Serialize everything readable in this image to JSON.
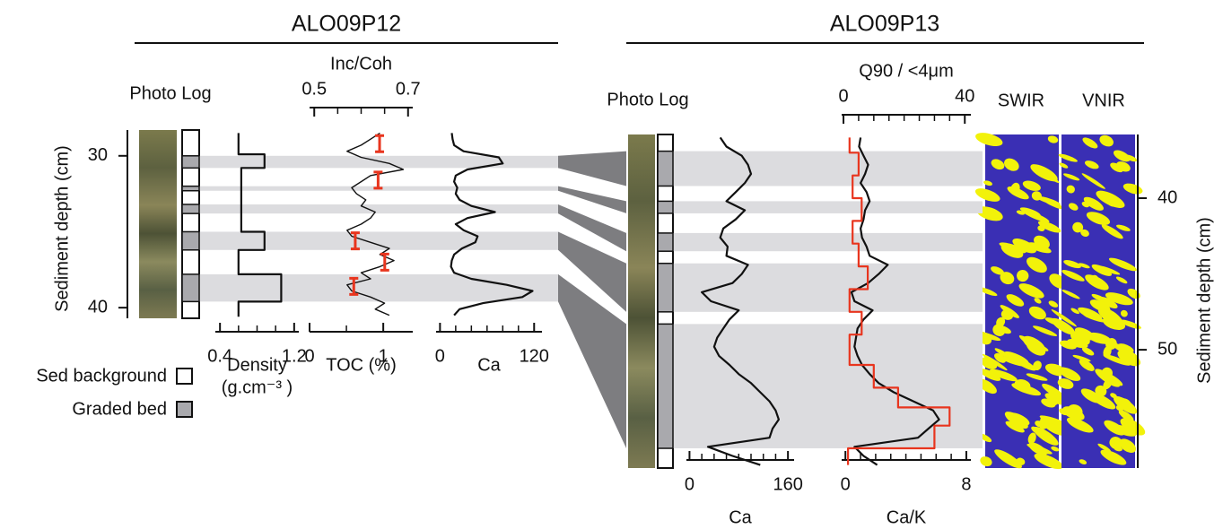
{
  "chart_data": [
    {
      "type": "line",
      "title": "ALO09P12",
      "photo_label": "Photo Log",
      "ylabel": "Sediment depth (cm)",
      "ylim": [
        28.3,
        40.7
      ],
      "yticks": [
        30,
        40
      ],
      "graded_beds": [
        [
          30.0,
          30.8
        ],
        [
          32.0,
          32.3
        ],
        [
          33.2,
          33.8
        ],
        [
          35.0,
          36.2
        ],
        [
          37.8,
          39.6
        ]
      ],
      "panels": [
        {
          "xlabel": "Density",
          "xunit": "(g.cm⁻³ )",
          "xlim": [
            0.35,
            1.25
          ],
          "xticks": [
            0.4,
            1.2
          ],
          "xminor": [
            0.6,
            0.8,
            1.0
          ],
          "series": [
            {
              "color": "#111111",
              "style": "step",
              "axis": "bottom",
              "depth": [
                28.5,
                29.9,
                29.9,
                30.8,
                30.8,
                35.0,
                35.0,
                36.2,
                36.2,
                37.8,
                37.8,
                39.6,
                39.6,
                40.6
              ],
              "values": [
                0.6,
                0.6,
                0.88,
                0.88,
                0.63,
                0.63,
                0.88,
                0.88,
                0.6,
                0.6,
                1.06,
                1.06,
                0.6,
                0.6
              ]
            }
          ]
        },
        {
          "xlabel": "TOC (%)",
          "xlabel_color": "#e8351e",
          "xlim": [
            0,
            1.4
          ],
          "xticks": [
            0,
            1
          ],
          "xminor": [
            0.5
          ],
          "x2label": "Inc/Coh",
          "x2lim": [
            0.49,
            0.71
          ],
          "x2ticks": [
            0.5,
            0.7
          ],
          "x2minor": [
            0.55,
            0.6,
            0.65
          ],
          "series": [
            {
              "color": "#111111",
              "style": "line",
              "axis": "top",
              "depth": [
                28.5,
                28.9,
                29.3,
                29.7,
                30.1,
                30.5,
                30.9,
                31.3,
                31.7,
                32.1,
                32.5,
                32.9,
                33.3,
                33.7,
                34.1,
                34.5,
                34.9,
                35.3,
                35.7,
                36.1,
                36.5,
                36.9,
                37.3,
                37.7,
                38.1,
                38.5,
                38.9,
                39.3,
                39.7,
                40.1,
                40.5
              ],
              "values": [
                0.64,
                0.62,
                0.6,
                0.57,
                0.6,
                0.66,
                0.69,
                0.62,
                0.6,
                0.58,
                0.59,
                0.61,
                0.6,
                0.63,
                0.62,
                0.6,
                0.57,
                0.58,
                0.62,
                0.66,
                0.64,
                0.67,
                0.64,
                0.6,
                0.62,
                0.57,
                0.58,
                0.62,
                0.65,
                0.63,
                0.66
              ]
            },
            {
              "color": "#e8351e",
              "style": "points",
              "axis": "bottom",
              "depth": [
                29.2,
                31.6,
                35.6,
                37.0,
                38.6
              ],
              "values": [
                0.95,
                0.93,
                0.62,
                1.02,
                0.6
              ]
            }
          ]
        },
        {
          "xlabel": "Ca",
          "xlim": [
            -5,
            130
          ],
          "xticks": [
            0,
            120
          ],
          "xminor": [
            20,
            40,
            60,
            80,
            100
          ],
          "series": [
            {
              "color": "#111111",
              "style": "line",
              "axis": "bottom",
              "depth": [
                28.5,
                28.9,
                29.3,
                29.7,
                30.1,
                30.5,
                30.9,
                31.3,
                31.7,
                32.1,
                32.5,
                32.9,
                33.3,
                33.7,
                34.1,
                34.5,
                34.9,
                35.3,
                35.7,
                36.1,
                36.5,
                36.9,
                37.3,
                37.7,
                38.1,
                38.5,
                38.9,
                39.3,
                39.7,
                40.1,
                40.5
              ],
              "values": [
                15,
                16,
                18,
                30,
                75,
                80,
                35,
                20,
                18,
                22,
                20,
                25,
                40,
                70,
                35,
                20,
                30,
                48,
                45,
                28,
                18,
                15,
                14,
                18,
                40,
                85,
                118,
                105,
                55,
                25,
                18
              ]
            }
          ]
        }
      ]
    },
    {
      "type": "line",
      "title": "ALO09P13",
      "photo_label": "Photo Log",
      "ylabel": "Sediment depth (cm)",
      "ylim": [
        35.8,
        57.8
      ],
      "yticks": [
        40,
        50
      ],
      "image_labels": [
        "SWIR",
        "VNIR"
      ],
      "graded_beds": [
        [
          36.9,
          39.2
        ],
        [
          40.2,
          41.0
        ],
        [
          42.3,
          43.5
        ],
        [
          44.3,
          47.5
        ],
        [
          48.3,
          56.5
        ]
      ],
      "panels": [
        {
          "xlabel": "Ca",
          "xlim": [
            -5,
            170
          ],
          "xticks": [
            0,
            160
          ],
          "xminor": [
            20,
            40,
            60,
            80,
            100,
            120,
            140
          ],
          "series": [
            {
              "color": "#111111",
              "style": "line",
              "axis": "bottom",
              "depth": [
                36.0,
                36.6,
                37.2,
                37.8,
                38.4,
                39.0,
                39.6,
                40.2,
                40.8,
                41.4,
                42.0,
                42.6,
                43.2,
                43.8,
                44.4,
                45.0,
                45.6,
                46.2,
                46.8,
                47.4,
                48.0,
                48.6,
                49.2,
                49.8,
                50.4,
                51.0,
                51.6,
                52.2,
                52.8,
                53.4,
                54.0,
                54.6,
                55.2,
                55.8,
                56.4,
                57.0,
                57.6
              ],
              "values": [
                50,
                60,
                85,
                95,
                100,
                90,
                75,
                60,
                90,
                75,
                55,
                50,
                62,
                60,
                95,
                85,
                70,
                20,
                35,
                80,
                65,
                55,
                45,
                40,
                48,
                65,
                80,
                100,
                115,
                130,
                140,
                145,
                135,
                130,
                30,
                70,
                115
              ]
            }
          ]
        },
        {
          "xlabel": "Ca/K",
          "xlim": [
            -0.25,
            8.3
          ],
          "xticks": [
            0,
            8
          ],
          "xminor": [
            1,
            2,
            3,
            4,
            5,
            6,
            7
          ],
          "x2label": "Q90 / <4μm",
          "x2label_color": "#e8351e",
          "x2lim": [
            -0.6,
            42
          ],
          "x2ticks": [
            0,
            40
          ],
          "x2minor": [
            5,
            10,
            15,
            20,
            25,
            30,
            35
          ],
          "series": [
            {
              "color": "#111111",
              "style": "line",
              "axis": "bottom",
              "depth": [
                36.0,
                36.6,
                37.2,
                37.8,
                38.4,
                39.0,
                39.6,
                40.2,
                40.8,
                41.4,
                42.0,
                42.6,
                43.2,
                43.8,
                44.4,
                45.0,
                45.6,
                46.2,
                46.8,
                47.4,
                48.0,
                48.6,
                49.2,
                49.8,
                50.4,
                51.0,
                51.6,
                52.2,
                52.8,
                53.4,
                54.0,
                54.6,
                55.2,
                55.8,
                56.4,
                57.0,
                57.6
              ],
              "values": [
                1.0,
                0.9,
                1.2,
                1.5,
                1.3,
                1.0,
                1.4,
                1.6,
                1.3,
                1.2,
                1.0,
                1.1,
                1.4,
                1.6,
                2.8,
                2.2,
                1.5,
                0.4,
                0.6,
                1.8,
                1.2,
                0.8,
                0.7,
                0.6,
                0.8,
                1.1,
                1.6,
                2.2,
                3.2,
                4.5,
                5.8,
                6.2,
                5.5,
                4.8,
                0.6,
                1.2,
                2.1
              ]
            },
            {
              "color": "#e8351e",
              "style": "step",
              "axis": "top",
              "depth": [
                36.0,
                37.0,
                37.0,
                38.5,
                38.5,
                40.0,
                40.0,
                41.5,
                41.5,
                43.0,
                43.0,
                44.5,
                44.5,
                46.0,
                46.0,
                47.5,
                47.5,
                49.0,
                49.0,
                51.0,
                51.0,
                52.5,
                52.5,
                53.8,
                53.8,
                55.0,
                55.0,
                56.5,
                56.5,
                57.6
              ],
              "values": [
                2,
                2,
                5,
                5,
                3,
                3,
                6,
                6,
                3,
                3,
                5,
                5,
                8,
                8,
                2,
                2,
                6,
                6,
                2,
                2,
                10,
                10,
                18,
                18,
                35,
                35,
                30,
                30,
                1.5,
                1.5
              ]
            }
          ]
        }
      ]
    }
  ],
  "legend": {
    "background": "Sed background",
    "graded": "Graded bed"
  }
}
